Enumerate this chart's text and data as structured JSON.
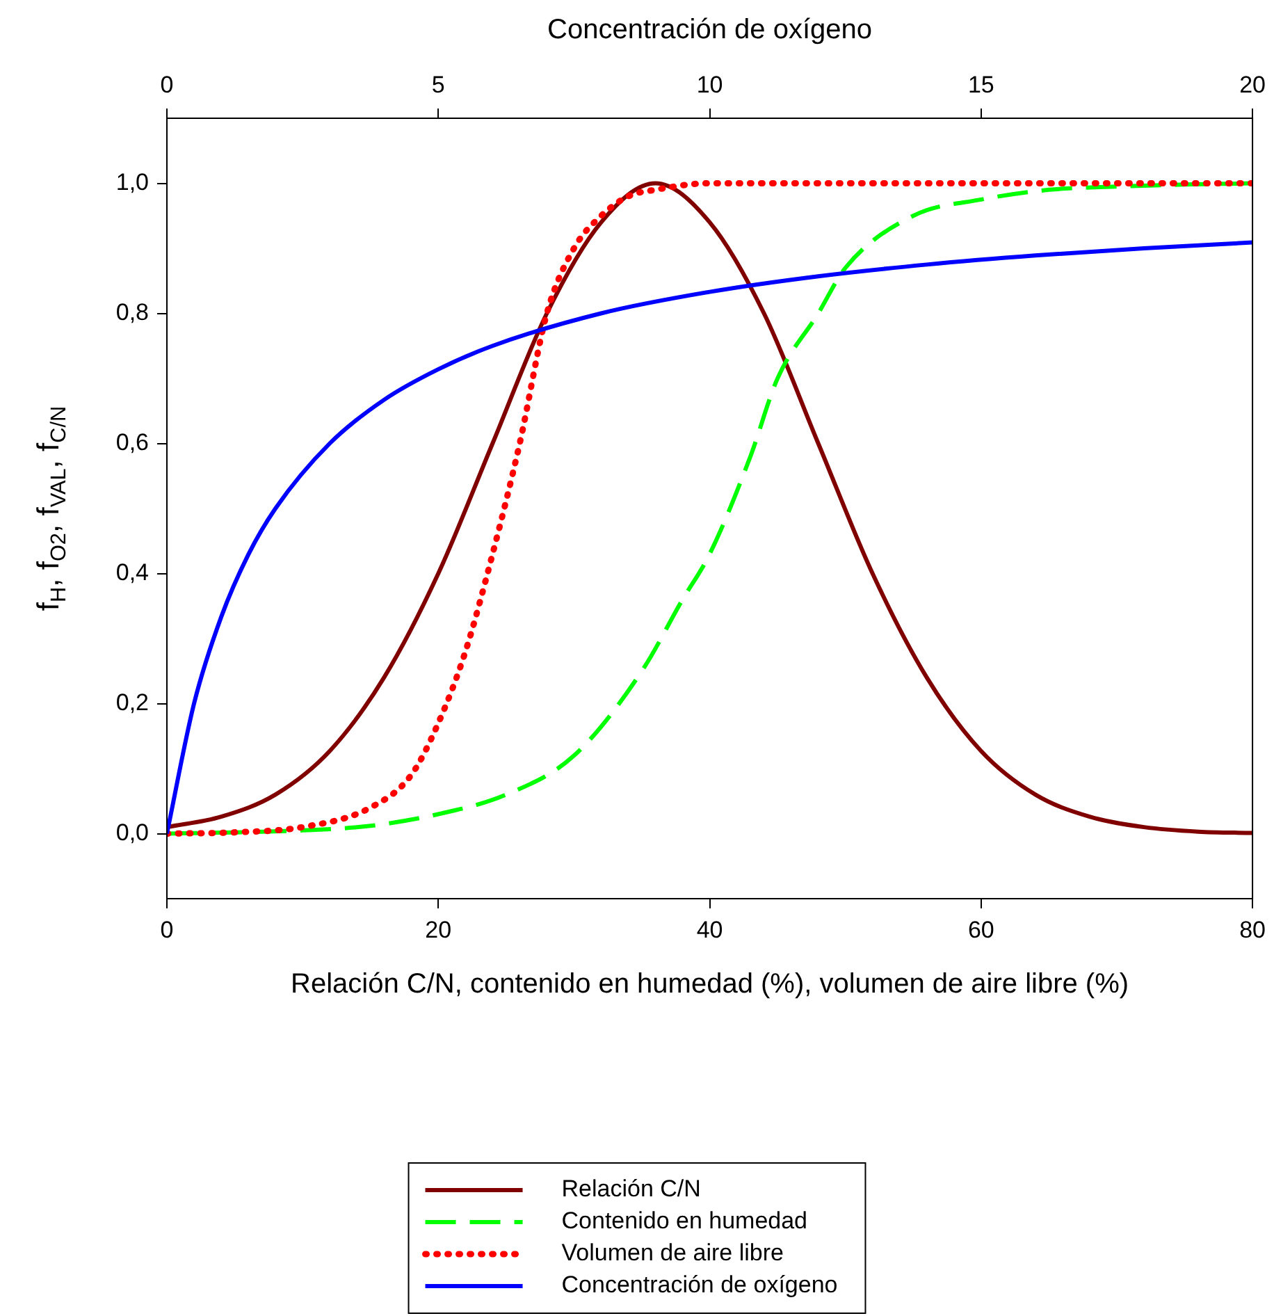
{
  "chart_data": {
    "type": "line",
    "xlabel": "Relación C/N, contenido en humedad (%), volumen de aire libre (%)",
    "x2label": "Concentración de oxígeno",
    "ylabel": "f$_{H}$, f$_{O2}$, f$_{VAL}$, f$_{C/N}$",
    "xlim": [
      0,
      80
    ],
    "xticks": [
      0,
      20,
      40,
      60,
      80
    ],
    "x2lim": [
      0,
      20
    ],
    "x2ticks": [
      0,
      5,
      10,
      15,
      20
    ],
    "ylim": [
      -0.1,
      1.1
    ],
    "yticks": [
      {
        "value": 0,
        "label": "0,0"
      },
      {
        "value": 0.2,
        "label": "0,2"
      },
      {
        "value": 0.4,
        "label": "0,4"
      },
      {
        "value": 0.6,
        "label": "0,6"
      },
      {
        "value": 0.8,
        "label": "0,8"
      },
      {
        "value": 1,
        "label": "1,0"
      }
    ],
    "grid": false,
    "legend": "bottom",
    "marker": "none",
    "series": [
      {
        "name": "Relación C/N",
        "color": "#800000",
        "line_style": "solid",
        "x": [
          0,
          4,
          8,
          12,
          16,
          20,
          24,
          28,
          32,
          36,
          40,
          44,
          48,
          52,
          56,
          60,
          64,
          68,
          72,
          76,
          80
        ],
        "values": [
          0.01,
          0.026,
          0.06,
          0.127,
          0.24,
          0.4,
          0.6,
          0.8,
          0.94,
          1,
          0.94,
          0.8,
          0.6,
          0.4,
          0.24,
          0.127,
          0.06,
          0.026,
          0.01,
          0.003,
          0.001
        ]
      },
      {
        "name": "Contenido en humedad",
        "color": "#00ff00",
        "line_style": "dashed",
        "x": [
          0,
          5,
          10,
          15,
          20,
          25,
          30,
          35,
          38,
          40,
          43,
          45,
          48,
          50,
          55,
          60,
          65,
          70,
          75,
          80
        ],
        "values": [
          0,
          0.002,
          0.005,
          0.012,
          0.03,
          0.06,
          0.12,
          0.25,
          0.36,
          0.43,
          0.58,
          0.7,
          0.8,
          0.87,
          0.95,
          0.975,
          0.99,
          0.995,
          0.998,
          1
        ]
      },
      {
        "name": "Volumen de aire libre",
        "color": "#ff0000",
        "line_style": "dotted",
        "x": [
          0,
          5,
          10,
          15,
          18,
          20,
          22,
          24,
          26,
          28,
          30,
          32,
          34,
          36,
          40,
          50,
          60,
          70,
          80
        ],
        "values": [
          0,
          0.002,
          0.01,
          0.04,
          0.09,
          0.17,
          0.28,
          0.43,
          0.6,
          0.8,
          0.9,
          0.95,
          0.98,
          0.99,
          1,
          1,
          1,
          1,
          1
        ]
      },
      {
        "name": "Concentración de oxígeno",
        "color": "#0000ff",
        "line_style": "solid",
        "axis": "x2",
        "x": [
          0,
          0.5,
          1,
          1.5,
          2,
          3,
          4,
          5,
          6,
          8,
          10,
          12,
          14,
          16,
          18,
          20
        ],
        "values": [
          0,
          0.2,
          0.333,
          0.429,
          0.5,
          0.6,
          0.667,
          0.714,
          0.75,
          0.8,
          0.833,
          0.857,
          0.875,
          0.889,
          0.9,
          0.909
        ]
      }
    ]
  }
}
